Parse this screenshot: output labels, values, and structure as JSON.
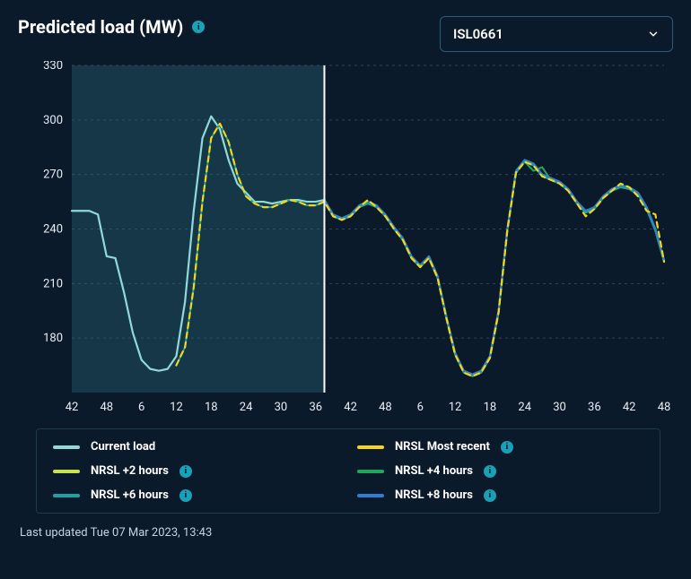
{
  "header": {
    "title": "Predicted load (MW)",
    "info_glyph": "i"
  },
  "selector": {
    "value": "ISL0661"
  },
  "chart": {
    "type": "line",
    "background_color": "#0b1a2a",
    "grid_color": "#3a5a6f",
    "axis_text_color": "#e8eef4",
    "axis_fontsize": 13,
    "shaded_region": {
      "x_start": 0,
      "x_end": 14.5,
      "fill": "#2b6f81",
      "opacity": 0.35
    },
    "now_line": {
      "x": 14.5,
      "color": "#ffffff",
      "width": 2
    },
    "x_ticks": [
      0,
      2,
      4,
      6,
      8,
      10,
      12,
      14,
      16,
      18,
      20,
      22,
      24,
      26,
      28,
      30,
      32,
      34,
      36
    ],
    "x_tick_labels": [
      "42",
      "48",
      "6",
      "12",
      "18",
      "24",
      "30",
      "36",
      "42",
      "48",
      "6",
      "12",
      "18",
      "24",
      "30",
      "36",
      "42",
      "48"
    ],
    "x_tick_positions": [
      0,
      2,
      4,
      6,
      8,
      10,
      12,
      14,
      16,
      18,
      20,
      22,
      24,
      26,
      28,
      30,
      32,
      34
    ],
    "ylim": [
      150,
      330
    ],
    "y_ticks": [
      180,
      210,
      240,
      270,
      300,
      330
    ],
    "series": [
      {
        "id": "current",
        "label": "Current load",
        "color": "#8fd9d9",
        "width": 2.2,
        "dash": null,
        "x": [
          0,
          0.5,
          1,
          1.5,
          2,
          2.5,
          3,
          3.5,
          4,
          4.5,
          5,
          5.5,
          6,
          6.5,
          7,
          7.5,
          8,
          8.5,
          9,
          9.5,
          10,
          10.5,
          11,
          11.5,
          12,
          12.5,
          13,
          13.5,
          14,
          14.5
        ],
        "y": [
          250,
          250,
          250,
          248,
          225,
          224,
          205,
          183,
          168,
          163,
          162,
          163,
          170,
          200,
          250,
          290,
          302,
          295,
          278,
          265,
          260,
          255,
          255,
          254,
          255,
          256,
          256,
          255,
          255,
          256
        ]
      },
      {
        "id": "plus2",
        "label": "NRSL +2 hours",
        "color": "#c7e54a",
        "width": 2,
        "dash": null,
        "x": [
          14.5,
          15,
          15.5,
          16,
          16.5,
          17,
          17.5,
          18,
          18.5,
          19,
          19.5,
          20,
          20.5,
          21,
          21.5,
          22,
          22.5,
          23,
          23.5,
          24,
          24.5,
          25,
          25.5,
          26,
          26.5,
          27,
          27.5,
          28,
          28.5,
          29,
          29.5,
          30,
          30.5,
          31,
          31.5,
          32,
          32.5,
          33,
          33.5,
          34
        ],
        "y": [
          256,
          248,
          246,
          248,
          253,
          255,
          253,
          248,
          241,
          235,
          225,
          220,
          225,
          214,
          192,
          172,
          162,
          160,
          162,
          170,
          195,
          240,
          272,
          278,
          276,
          270,
          268,
          266,
          262,
          255,
          250,
          252,
          258,
          262,
          264,
          263,
          260,
          252,
          240,
          223
        ]
      },
      {
        "id": "plus4",
        "label": "NRSL +4 hours",
        "color": "#1fa85a",
        "width": 2,
        "dash": null,
        "x": [
          14.5,
          15,
          15.5,
          16,
          16.5,
          17,
          17.5,
          18,
          18.5,
          19,
          19.5,
          20,
          20.5,
          21,
          21.5,
          22,
          22.5,
          23,
          23.5,
          24,
          24.5,
          25,
          25.5,
          26,
          26.5,
          27,
          27.5,
          28,
          28.5,
          29,
          29.5,
          30,
          30.5,
          31,
          31.5,
          32,
          32.5,
          33,
          33.5,
          34
        ],
        "y": [
          256,
          247,
          245,
          247,
          252,
          254,
          252,
          247,
          240,
          234,
          224,
          219,
          224,
          213,
          191,
          171,
          161,
          159,
          161,
          169,
          194,
          239,
          271,
          277,
          272,
          274,
          267,
          265,
          261,
          254,
          249,
          251,
          257,
          261,
          263,
          262,
          259,
          251,
          239,
          222
        ]
      },
      {
        "id": "plus6",
        "label": "NRSL +6 hours",
        "color": "#1aa3a3",
        "width": 2,
        "dash": null,
        "x": [
          6,
          6.5,
          7,
          7.5,
          8,
          8.5,
          9,
          9.5,
          10,
          10.5,
          11,
          11.5,
          12,
          12.5,
          13,
          13.5,
          14,
          14.5,
          15,
          15.5,
          16,
          16.5,
          17,
          17.5,
          18,
          18.5,
          19,
          19.5,
          20,
          20.5,
          21,
          21.5,
          22,
          22.5,
          23,
          23.5,
          24,
          24.5,
          25,
          25.5,
          26,
          26.5,
          27,
          27.5,
          28,
          28.5,
          29,
          29.5,
          30,
          30.5,
          31,
          31.5,
          32,
          32.5,
          33,
          33.5,
          34
        ],
        "y": [
          165,
          175,
          208,
          255,
          290,
          298,
          288,
          270,
          258,
          254,
          252,
          252,
          254,
          256,
          255,
          253,
          253,
          255,
          247,
          245,
          247,
          252,
          254,
          252,
          247,
          240,
          234,
          224,
          219,
          224,
          213,
          191,
          171,
          161,
          159,
          161,
          169,
          194,
          239,
          271,
          277,
          275,
          269,
          267,
          265,
          261,
          254,
          249,
          251,
          257,
          261,
          263,
          262,
          259,
          251,
          239,
          222
        ]
      },
      {
        "id": "plus8",
        "label": "NRSL +8 hours",
        "color": "#2d7fd1",
        "width": 2,
        "dash": null,
        "x": [
          14.5,
          15,
          15.5,
          16,
          16.5,
          17,
          17.5,
          18,
          18.5,
          19,
          19.5,
          20,
          20.5,
          21,
          21.5,
          22,
          22.5,
          23,
          23.5,
          24,
          24.5,
          25,
          25.5,
          26,
          26.5,
          27,
          27.5,
          28,
          28.5,
          29,
          29.5,
          30,
          30.5,
          31,
          31.5,
          32,
          32.5,
          33,
          33.5,
          34
        ],
        "y": [
          256,
          248,
          246,
          248,
          253,
          255,
          253,
          248,
          241,
          235,
          225,
          220,
          225,
          214,
          192,
          172,
          162,
          160,
          162,
          170,
          195,
          240,
          272,
          278,
          276,
          270,
          268,
          266,
          262,
          255,
          250,
          252,
          258,
          262,
          264,
          263,
          260,
          252,
          240,
          223
        ]
      },
      {
        "id": "most_recent",
        "label": "NRSL Most recent",
        "color": "#f5d714",
        "width": 2.2,
        "dash": "6 5",
        "x": [
          6,
          6.5,
          7,
          7.5,
          8,
          8.5,
          9,
          9.5,
          10,
          10.5,
          11,
          11.5,
          12,
          12.5,
          13,
          13.5,
          14,
          14.5,
          15,
          15.5,
          16,
          16.5,
          17,
          17.5,
          18,
          18.5,
          19,
          19.5,
          20,
          20.5,
          21,
          21.5,
          22,
          22.5,
          23,
          23.5,
          24,
          24.5,
          25,
          25.5,
          26,
          26.5,
          27,
          27.5,
          28,
          28.5,
          29,
          29.5,
          30,
          30.5,
          31,
          31.5,
          32,
          32.5,
          33,
          33.5,
          34
        ],
        "y": [
          165,
          175,
          208,
          255,
          290,
          298,
          288,
          270,
          258,
          254,
          252,
          252,
          254,
          256,
          255,
          253,
          253,
          255,
          247,
          245,
          247,
          252,
          256,
          252,
          247,
          240,
          234,
          224,
          219,
          224,
          213,
          191,
          171,
          161,
          159,
          161,
          169,
          194,
          239,
          271,
          277,
          275,
          269,
          267,
          265,
          261,
          254,
          247,
          251,
          257,
          261,
          265,
          263,
          258,
          250,
          248,
          222
        ]
      }
    ]
  },
  "legend": {
    "items": [
      {
        "label": "Current load",
        "color": "#8fd9d9",
        "info": false
      },
      {
        "label": "NRSL Most recent",
        "color": "#f5d714",
        "info": true
      },
      {
        "label": "NRSL +2 hours",
        "color": "#c7e54a",
        "info": true
      },
      {
        "label": "NRSL +4 hours",
        "color": "#1fa85a",
        "info": true
      },
      {
        "label": "NRSL +6 hours",
        "color": "#1aa3a3",
        "info": true
      },
      {
        "label": "NRSL +8 hours",
        "color": "#2d7fd1",
        "info": true
      }
    ]
  },
  "footer": {
    "last_updated": "Last updated Tue 07 Mar 2023, 13:43"
  }
}
